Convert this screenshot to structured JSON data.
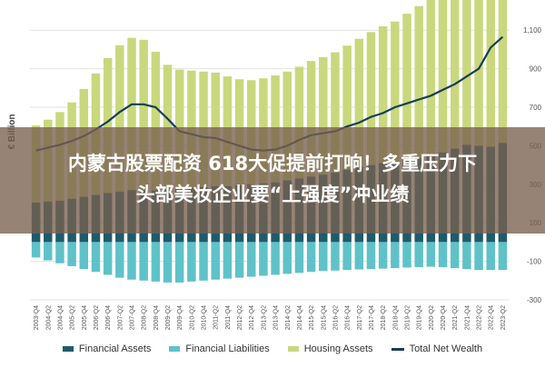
{
  "headline": {
    "line1": "内蒙古股票配资 618大促提前打响！多重压力下",
    "line2": "头部美妆企业要“上强度”冲业绩"
  },
  "chart_data": {
    "type": "bar",
    "ylabel": "€ Billion",
    "ylim": [
      -300,
      1200
    ],
    "yticks": [
      1100,
      900,
      700,
      500,
      300,
      100,
      -100,
      -300
    ],
    "ytick_labels": [
      "1,100",
      "900",
      "700",
      "500",
      "300",
      "100",
      "-100",
      "-300"
    ],
    "grid": true,
    "legend_placement": "bottom",
    "x": [
      "2003-Q4",
      "2004-Q2",
      "2004-Q4",
      "2005-Q2",
      "2005-Q4",
      "2006-Q2",
      "2006-Q4",
      "2007-Q2",
      "2007-Q4",
      "2008-Q2",
      "2008-Q4",
      "2009-Q2",
      "2009-Q4",
      "2010-Q2",
      "2010-Q4",
      "2011-Q2",
      "2011-Q4",
      "2012-Q2",
      "2012-Q4",
      "2013-Q2",
      "2013-Q4",
      "2014-Q2",
      "2014-Q4",
      "2015-Q2",
      "2015-Q4",
      "2016-Q2",
      "2016-Q4",
      "2017-Q2",
      "2017-Q4",
      "2018-Q2",
      "2018-Q4",
      "2019-Q2",
      "2019-Q4",
      "2020-Q2",
      "2020-Q4",
      "2021-Q2",
      "2021-Q4",
      "2022-Q2",
      "2022-Q4",
      "2023-Q2"
    ],
    "series": [
      {
        "name": "Financial Assets",
        "kind": "bar",
        "color": "#1f5b6c",
        "values": [
          205,
          210,
          215,
          225,
          235,
          245,
          255,
          262,
          270,
          270,
          268,
          270,
          275,
          280,
          285,
          290,
          290,
          295,
          300,
          305,
          310,
          320,
          330,
          340,
          350,
          360,
          375,
          390,
          400,
          410,
          415,
          425,
          435,
          445,
          465,
          485,
          505,
          500,
          495,
          515
        ]
      },
      {
        "name": "Financial Liabilities",
        "kind": "bar",
        "color": "#5fc2c9",
        "values": [
          -80,
          -95,
          -110,
          -125,
          -140,
          -155,
          -170,
          -185,
          -195,
          -200,
          -205,
          -210,
          -210,
          -205,
          -200,
          -195,
          -190,
          -185,
          -180,
          -175,
          -170,
          -165,
          -160,
          -155,
          -150,
          -148,
          -145,
          -142,
          -140,
          -138,
          -135,
          -132,
          -130,
          -128,
          -130,
          -135,
          -140,
          -145,
          -145,
          -145
        ]
      },
      {
        "name": "Housing Assets",
        "kind": "bar",
        "color": "#c9d87d",
        "values": [
          400,
          425,
          460,
          500,
          560,
          630,
          700,
          760,
          790,
          780,
          720,
          650,
          620,
          610,
          600,
          590,
          570,
          550,
          540,
          545,
          555,
          565,
          580,
          600,
          610,
          625,
          645,
          665,
          690,
          710,
          730,
          760,
          790,
          820,
          850,
          900,
          950,
          1000,
          1050,
          1080
        ]
      },
      {
        "name": "Total Net Wealth",
        "kind": "line",
        "color": "#173e56",
        "values": [
          475,
          490,
          505,
          525,
          550,
          585,
          625,
          675,
          715,
          715,
          700,
          640,
          575,
          560,
          545,
          540,
          520,
          500,
          480,
          475,
          480,
          500,
          530,
          555,
          565,
          575,
          600,
          620,
          650,
          670,
          700,
          720,
          740,
          760,
          790,
          820,
          860,
          900,
          1010,
          1065
        ]
      }
    ]
  }
}
